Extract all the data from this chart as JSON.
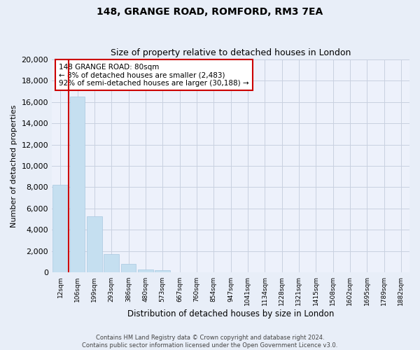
{
  "title": "148, GRANGE ROAD, ROMFORD, RM3 7EA",
  "subtitle": "Size of property relative to detached houses in London",
  "xlabel": "Distribution of detached houses by size in London",
  "ylabel": "Number of detached properties",
  "bar_labels": [
    "12sqm",
    "106sqm",
    "199sqm",
    "293sqm",
    "386sqm",
    "480sqm",
    "573sqm",
    "667sqm",
    "760sqm",
    "854sqm",
    "947sqm",
    "1041sqm",
    "1134sqm",
    "1228sqm",
    "1321sqm",
    "1415sqm",
    "1508sqm",
    "1602sqm",
    "1695sqm",
    "1789sqm",
    "1882sqm"
  ],
  "bar_values": [
    8200,
    16500,
    5300,
    1750,
    800,
    300,
    200,
    0,
    0,
    0,
    0,
    0,
    0,
    0,
    0,
    0,
    0,
    0,
    0,
    0,
    0
  ],
  "bar_color": "#c5dff0",
  "bar_edge_color": "#a8c8e0",
  "vline_color": "#cc0000",
  "ylim": [
    0,
    20000
  ],
  "yticks": [
    0,
    2000,
    4000,
    6000,
    8000,
    10000,
    12000,
    14000,
    16000,
    18000,
    20000
  ],
  "annotation_title": "148 GRANGE ROAD: 80sqm",
  "annotation_line1": "← 8% of detached houses are smaller (2,483)",
  "annotation_line2": "92% of semi-detached houses are larger (30,188) →",
  "annotation_box_color": "#ffffff",
  "annotation_box_edgecolor": "#cc0000",
  "footnote1": "Contains HM Land Registry data © Crown copyright and database right 2024.",
  "footnote2": "Contains public sector information licensed under the Open Government Licence v3.0.",
  "bg_color": "#e8eef8",
  "plot_bg_color": "#edf1fb",
  "grid_color": "#c8d0e0"
}
